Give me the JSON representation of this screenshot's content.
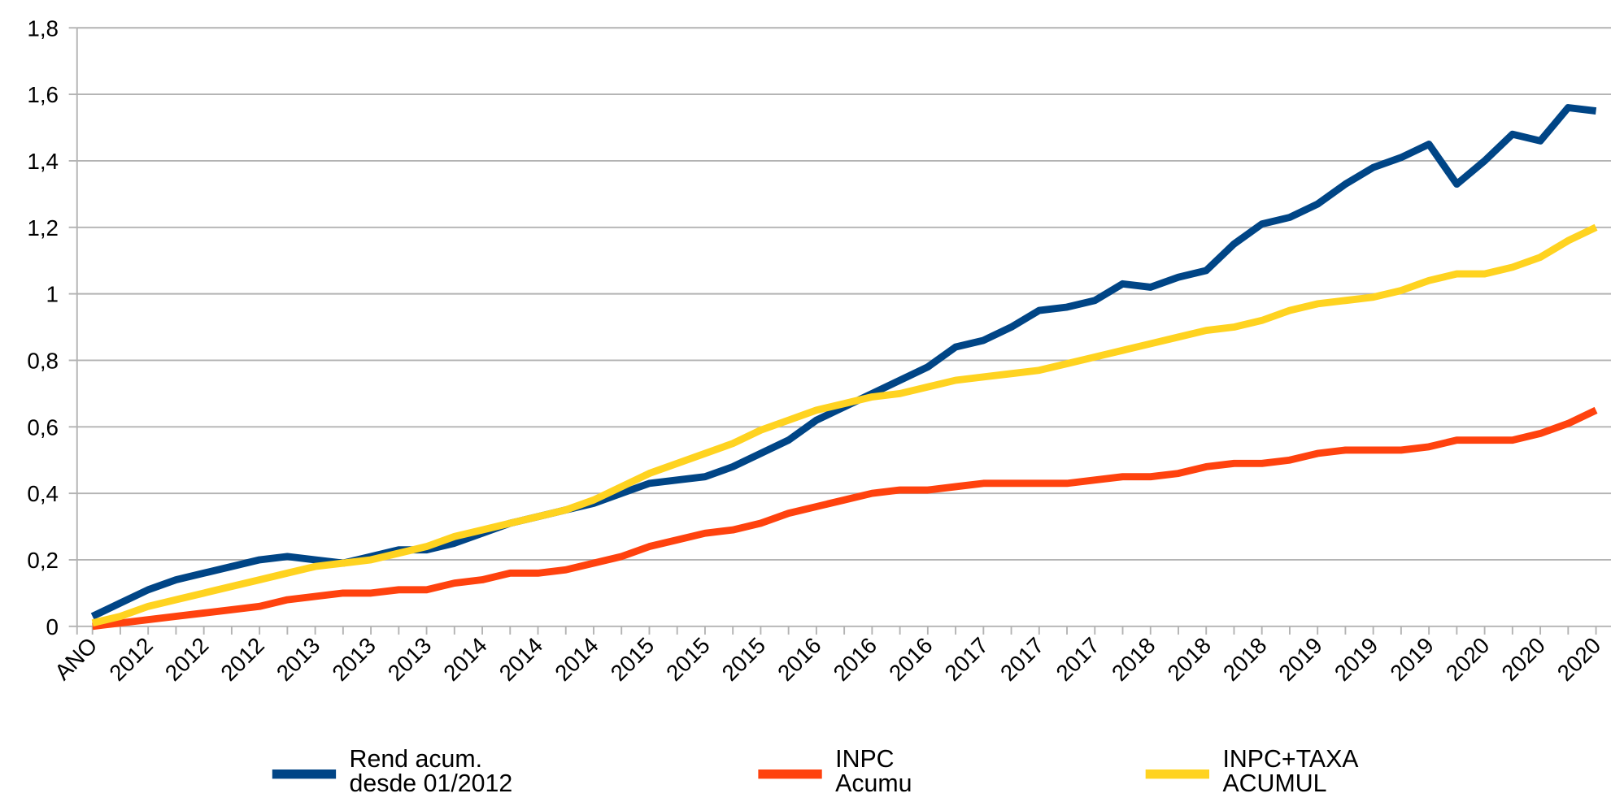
{
  "chart_data": {
    "type": "line",
    "categories": [
      "ANO",
      null,
      "2012",
      null,
      "2012",
      null,
      "2012",
      null,
      "2013",
      null,
      "2013",
      null,
      "2013",
      null,
      "2014",
      null,
      "2014",
      null,
      "2014",
      null,
      "2015",
      null,
      "2015",
      null,
      "2015",
      null,
      "2016",
      null,
      "2016",
      null,
      "2016",
      null,
      "2017",
      null,
      "2017",
      null,
      "2017",
      null,
      "2018",
      null,
      "2018",
      null,
      "2018",
      null,
      "2019",
      null,
      "2019",
      null,
      "2019",
      null,
      "2020",
      null,
      "2020",
      null,
      "2020"
    ],
    "series": [
      {
        "name": "Rend acum. desde 01/2012",
        "color": "#004586",
        "values": [
          0.03,
          0.07,
          0.11,
          0.14,
          0.16,
          0.18,
          0.2,
          0.21,
          0.2,
          0.19,
          0.21,
          0.23,
          0.23,
          0.25,
          0.28,
          0.31,
          0.33,
          0.35,
          0.37,
          0.4,
          0.43,
          0.44,
          0.45,
          0.48,
          0.52,
          0.56,
          0.62,
          0.66,
          0.7,
          0.74,
          0.78,
          0.84,
          0.86,
          0.9,
          0.95,
          0.96,
          0.98,
          1.03,
          1.02,
          1.05,
          1.07,
          1.15,
          1.21,
          1.23,
          1.27,
          1.33,
          1.38,
          1.41,
          1.45,
          1.33,
          1.4,
          1.48,
          1.46,
          1.56,
          1.55
        ]
      },
      {
        "name": "INPC Acumu",
        "color": "#ff420e",
        "values": [
          0.0,
          0.01,
          0.02,
          0.03,
          0.04,
          0.05,
          0.06,
          0.08,
          0.09,
          0.1,
          0.1,
          0.11,
          0.11,
          0.13,
          0.14,
          0.16,
          0.16,
          0.17,
          0.19,
          0.21,
          0.24,
          0.26,
          0.28,
          0.29,
          0.31,
          0.34,
          0.36,
          0.38,
          0.4,
          0.41,
          0.41,
          0.42,
          0.43,
          0.43,
          0.43,
          0.43,
          0.44,
          0.45,
          0.45,
          0.46,
          0.48,
          0.49,
          0.49,
          0.5,
          0.52,
          0.53,
          0.53,
          0.53,
          0.54,
          0.56,
          0.56,
          0.56,
          0.58,
          0.61,
          0.65
        ]
      },
      {
        "name": "INPC+TAXA ACUMUL",
        "color": "#ffd320",
        "values": [
          0.01,
          0.03,
          0.06,
          0.08,
          0.1,
          0.12,
          0.14,
          0.16,
          0.18,
          0.19,
          0.2,
          0.22,
          0.24,
          0.27,
          0.29,
          0.31,
          0.33,
          0.35,
          0.38,
          0.42,
          0.46,
          0.49,
          0.52,
          0.55,
          0.59,
          0.62,
          0.65,
          0.67,
          0.69,
          0.7,
          0.72,
          0.74,
          0.75,
          0.76,
          0.77,
          0.79,
          0.81,
          0.83,
          0.85,
          0.87,
          0.89,
          0.9,
          0.92,
          0.95,
          0.97,
          0.98,
          0.99,
          1.01,
          1.04,
          1.06,
          1.06,
          1.08,
          1.11,
          1.16,
          1.2
        ]
      }
    ],
    "ylim": [
      0,
      1.8
    ],
    "yticks": [
      0,
      {
        "value": 0.2,
        "label": "0,2"
      },
      {
        "value": 0.4,
        "label": "0,4"
      },
      {
        "value": 0.6,
        "label": "0,6"
      },
      {
        "value": 0.8,
        "label": "0,8"
      },
      1,
      {
        "value": 1.2,
        "label": "1,2"
      },
      {
        "value": 1.4,
        "label": "1,4"
      },
      {
        "value": 1.6,
        "label": "1,6"
      },
      {
        "value": 1.8,
        "label": "1,8"
      }
    ],
    "grid": true,
    "legend": "bottom"
  }
}
